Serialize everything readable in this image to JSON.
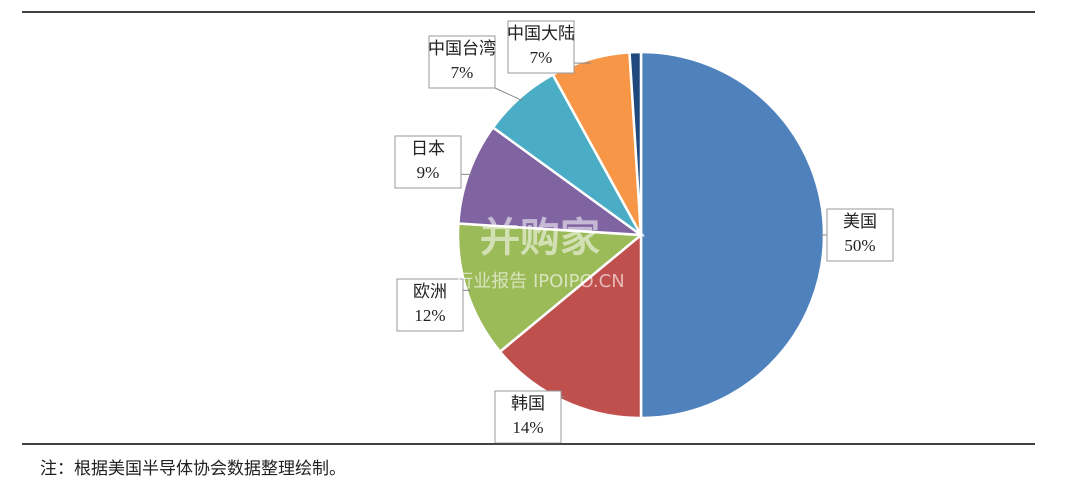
{
  "chart_data": {
    "type": "pie",
    "categories": [
      "美国",
      "韩国",
      "欧洲",
      "日本",
      "中国台湾",
      "中国大陆",
      null
    ],
    "values": [
      50,
      14,
      12,
      9,
      7,
      7,
      1
    ],
    "value_labels": [
      "50%",
      "14%",
      "12%",
      "9%",
      "7%",
      "7%",
      null
    ],
    "colors": [
      "#4f81bd",
      "#c0504d",
      "#9bbb59",
      "#8064a2",
      "#4bacc6",
      "#f79646",
      "#1f497d"
    ],
    "note": "注：根据美国半导体协会数据整理绘制。",
    "watermark": [
      "并购家",
      "行业报告 IPOIPO.CN"
    ]
  }
}
